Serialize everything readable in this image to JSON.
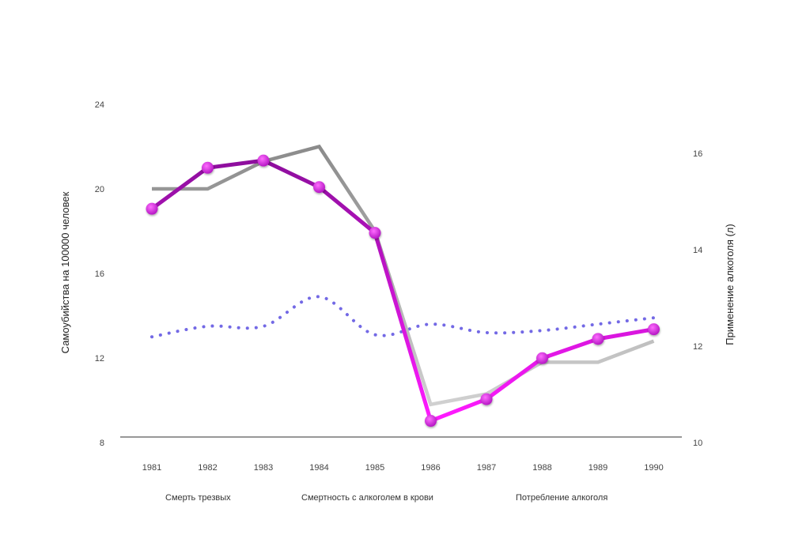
{
  "chart_data": {
    "type": "line",
    "categories": [
      "1981",
      "1982",
      "1983",
      "1984",
      "1985",
      "1986",
      "1987",
      "1988",
      "1989",
      "1990"
    ],
    "ylabel_left": "Самоубийства на 100000 человек",
    "ylabel_right": "Применение алкоголя (л)",
    "yticks_left": [
      "24",
      "20",
      "16",
      "12",
      "8"
    ],
    "yticks_right": [
      "16",
      "14",
      "12",
      "10"
    ],
    "ylim_left": [
      8,
      24
    ],
    "ylim_right": [
      10,
      16
    ],
    "grid": false,
    "legend_position": "bottom",
    "series": [
      {
        "name": "Смерть трезвых",
        "axis": "left",
        "style": "dotted",
        "values": [
          13.0,
          13.5,
          13.5,
          14.9,
          13.1,
          13.6,
          13.2,
          13.3,
          13.6,
          13.9
        ]
      },
      {
        "name": "Смертность с алкоголем в крови",
        "axis": "left",
        "style": "solid",
        "values": [
          20.0,
          20.0,
          21.3,
          22.0,
          18.0,
          9.8,
          10.3,
          11.8,
          11.8,
          12.8
        ]
      },
      {
        "name": "Потребление алкоголя",
        "axis": "right",
        "style": "solid-markers",
        "values": [
          14.85,
          15.7,
          15.85,
          15.3,
          14.35,
          10.45,
          10.9,
          11.75,
          12.15,
          12.35
        ]
      }
    ]
  },
  "colors": {
    "sober": "#5b4fe0",
    "alcohol_deaths": "#888888",
    "consumption_dark": "#8a0f9a",
    "consumption_light": "#ff1aff"
  }
}
